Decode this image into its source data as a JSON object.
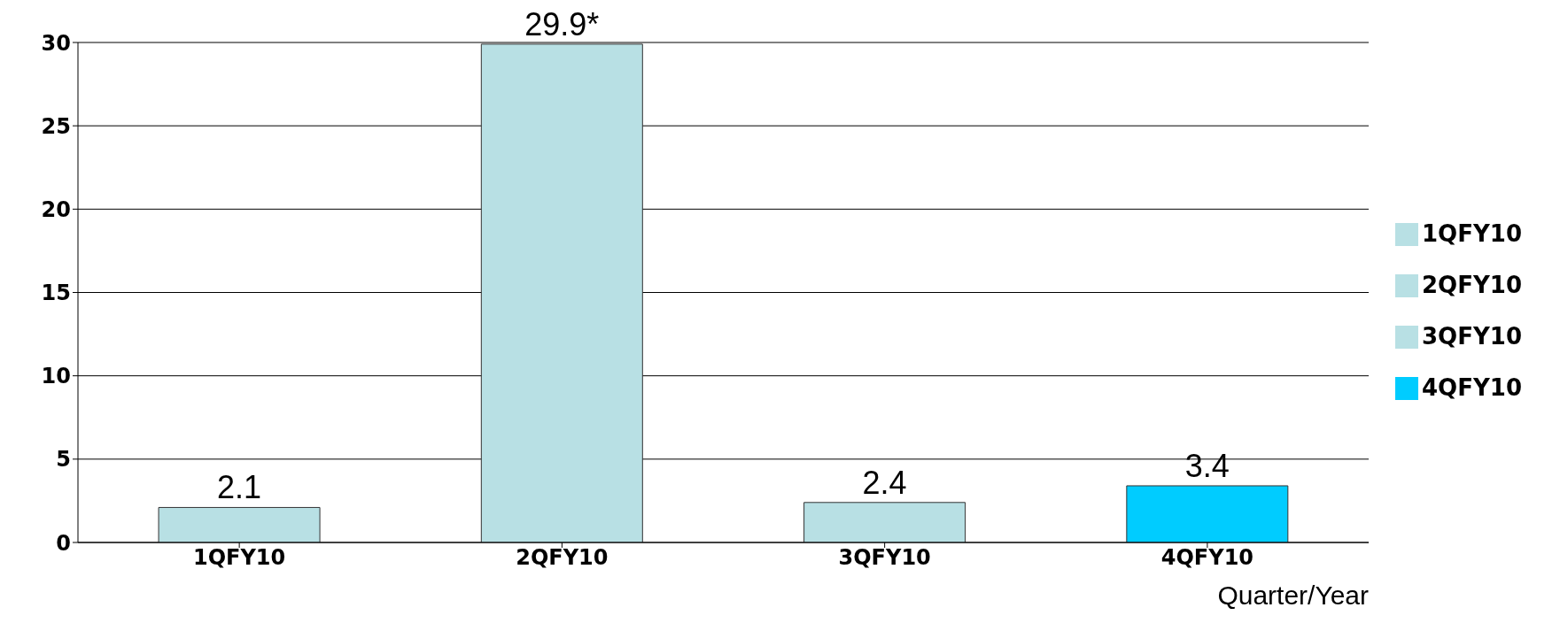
{
  "chart_data": {
    "type": "bar",
    "xlabel": "Quarter/Year",
    "stacked": true,
    "categories": [
      "1QFY10",
      "2QFY10",
      "3QFY10",
      "4QFY10"
    ],
    "series": [
      {
        "name": "1QFY10",
        "color": "#b8e0e4",
        "values": [
          2.1,
          null,
          null,
          null
        ],
        "value_labels": [
          "2.1",
          null,
          null,
          null
        ]
      },
      {
        "name": "2QFY10",
        "color": "#b8e0e4",
        "values": [
          null,
          29.9,
          null,
          null
        ],
        "value_labels": [
          null,
          "29.9*",
          null,
          null
        ]
      },
      {
        "name": "3QFY10",
        "color": "#b8e0e4",
        "values": [
          null,
          null,
          2.4,
          null
        ],
        "value_labels": [
          null,
          null,
          "2.4",
          null
        ]
      },
      {
        "name": "4QFY10",
        "color": "#00ccff",
        "values": [
          null,
          null,
          null,
          3.4
        ],
        "value_labels": [
          null,
          null,
          null,
          "3.4"
        ]
      }
    ],
    "ylim": [
      0,
      30
    ],
    "yticks": [
      0,
      5,
      10,
      15,
      20,
      25,
      30
    ],
    "grid": "y",
    "legend": "right"
  }
}
